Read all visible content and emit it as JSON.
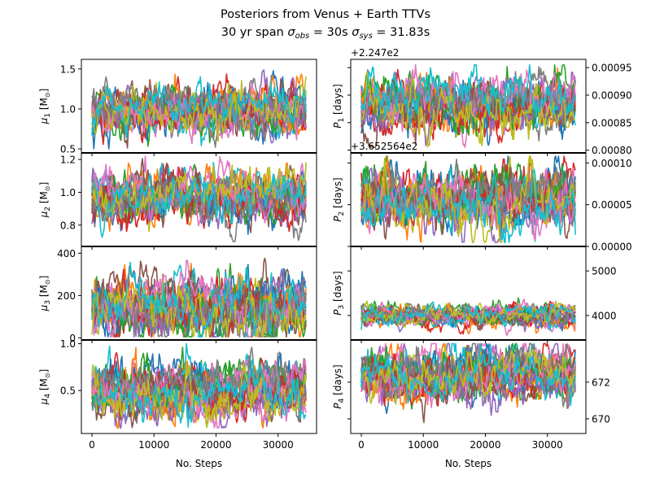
{
  "figure": {
    "title_line1": "Posteriors from Venus + Earth TTVs",
    "title_line2_prefix": "30 yr span ",
    "title_sigma_obs": "σ",
    "title_sigma_obs_sub": "obs",
    "title_obs_value": " = 30s ",
    "title_sigma_sys": "σ",
    "title_sigma_sys_sub": "sys",
    "title_sys_value": " = 31.83s"
  },
  "colors": [
    "#1f77b4",
    "#ff7f0e",
    "#2ca02c",
    "#d62728",
    "#9467bd",
    "#8c564b",
    "#e377c2",
    "#7f7f7f",
    "#bcbd22",
    "#17becf"
  ],
  "chart_data": [
    {
      "type": "line",
      "panel": "mu1",
      "ylabel_symbol": "μ",
      "ylabel_sub": "1",
      "ylabel_unit": " [M",
      "ylabel_unit_sub": "⊙",
      "ylabel_end": "]",
      "x_range": [
        0,
        34500
      ],
      "ylim": [
        0.45,
        1.62
      ],
      "yticks": [
        {
          "value": 0.5,
          "label": "0.5"
        },
        {
          "value": 1.0,
          "label": "1.0"
        },
        {
          "value": 1.5,
          "label": "1.5"
        }
      ],
      "center": 1.0,
      "spread": 0.16,
      "clip": [
        0.5,
        1.58
      ],
      "xlabel": ""
    },
    {
      "type": "line",
      "panel": "P1",
      "ylabel_symbol": "P",
      "ylabel_sub": "1",
      "ylabel_unit": " [days]",
      "offset_label": "+2.247e2",
      "x_range": [
        0,
        34500
      ],
      "ylim": [
        0.000795,
        0.000965
      ],
      "yticks": [
        {
          "value": 0.0008,
          "label": "0.00080"
        },
        {
          "value": 0.00085,
          "label": "0.00085"
        },
        {
          "value": 0.0009,
          "label": "0.00090"
        },
        {
          "value": 0.00095,
          "label": "0.00095"
        }
      ],
      "center": 0.00088,
      "spread": 2.5e-05,
      "clip": [
        0.000805,
        0.000955
      ],
      "xlabel": ""
    },
    {
      "type": "line",
      "panel": "mu2",
      "ylabel_symbol": "μ",
      "ylabel_sub": "2",
      "ylabel_unit": " [M",
      "ylabel_unit_sub": "⊙",
      "ylabel_end": "]",
      "x_range": [
        0,
        34500
      ],
      "ylim": [
        0.67,
        1.24
      ],
      "yticks": [
        {
          "value": 0.8,
          "label": "0.8"
        },
        {
          "value": 1.0,
          "label": "1.0"
        },
        {
          "value": 1.2,
          "label": "1.2"
        }
      ],
      "center": 0.98,
      "spread": 0.08,
      "clip": [
        0.7,
        1.22
      ],
      "xlabel": ""
    },
    {
      "type": "line",
      "panel": "P2",
      "ylabel_symbol": "P",
      "ylabel_sub": "2",
      "ylabel_unit": " [days]",
      "offset_label": "+3.652564e2",
      "x_range": [
        0,
        34500
      ],
      "ylim": [
        0.0,
        0.000112
      ],
      "yticks": [
        {
          "value": 0.0,
          "label": "0.00000"
        },
        {
          "value": 5e-05,
          "label": "0.00005"
        },
        {
          "value": 0.0001,
          "label": "0.00010"
        }
      ],
      "center": 5.5e-05,
      "spread": 1.8e-05,
      "clip": [
        5e-06,
        0.000108
      ],
      "xlabel": ""
    },
    {
      "type": "line",
      "panel": "mu3",
      "ylabel_symbol": "μ",
      "ylabel_sub": "3",
      "ylabel_unit": " [M",
      "ylabel_unit_sub": "⊙",
      "ylabel_end": "]",
      "x_range": [
        0,
        34500
      ],
      "ylim": [
        -10,
        432
      ],
      "yticks": [
        {
          "value": 0,
          "label": "0"
        },
        {
          "value": 200,
          "label": "200"
        },
        {
          "value": 400,
          "label": "400"
        }
      ],
      "center": 150,
      "spread": 70,
      "clip": [
        5,
        420
      ],
      "xlabel": ""
    },
    {
      "type": "line",
      "panel": "P3",
      "ylabel_symbol": "P",
      "ylabel_sub": "3",
      "ylabel_unit": " [days]",
      "x_range": [
        0,
        34500
      ],
      "ylim": [
        3450,
        5550
      ],
      "yticks": [
        {
          "value": 4000,
          "label": "4000"
        },
        {
          "value": 5000,
          "label": "5000"
        }
      ],
      "center": 4000,
      "spread": 120,
      "clip": [
        3550,
        5450
      ],
      "xlabel": ""
    },
    {
      "type": "line",
      "panel": "mu4",
      "ylabel_symbol": "μ",
      "ylabel_sub": "4",
      "ylabel_unit": " [M",
      "ylabel_unit_sub": "⊙",
      "ylabel_end": "]",
      "x_range": [
        0,
        34500
      ],
      "ylim": [
        0.04,
        1.04
      ],
      "yticks": [
        {
          "value": 0.5,
          "label": "0.5"
        },
        {
          "value": 1.0,
          "label": "1.0"
        }
      ],
      "center": 0.5,
      "spread": 0.14,
      "clip": [
        0.1,
        1.0
      ],
      "xlabel": "No. Steps",
      "xticks": [
        {
          "value": 0,
          "label": "0"
        },
        {
          "value": 10000,
          "label": "10000"
        },
        {
          "value": 20000,
          "label": "20000"
        },
        {
          "value": 30000,
          "label": "30000"
        }
      ]
    },
    {
      "type": "line",
      "panel": "P4",
      "ylabel_symbol": "P",
      "ylabel_sub": "4",
      "ylabel_unit": " [days]",
      "x_range": [
        0,
        34500
      ],
      "ylim": [
        669.2,
        674.3
      ],
      "yticks": [
        {
          "value": 670,
          "label": "670"
        },
        {
          "value": 672,
          "label": "672"
        }
      ],
      "center": 672.4,
      "spread": 0.7,
      "clip": [
        669.5,
        674.1
      ],
      "xlabel": "No. Steps",
      "xticks": [
        {
          "value": 0,
          "label": "0"
        },
        {
          "value": 10000,
          "label": "10000"
        },
        {
          "value": 20000,
          "label": "20000"
        },
        {
          "value": 30000,
          "label": "30000"
        }
      ]
    }
  ]
}
